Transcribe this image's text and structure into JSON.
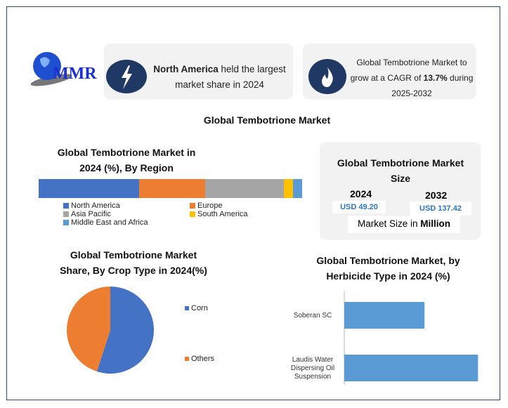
{
  "logo": {
    "text": "MMR"
  },
  "header": {
    "card1": {
      "bold": "North America",
      "text": " held the largest market share in 2024",
      "icon": "lightning-icon"
    },
    "card2": {
      "pre": "Global Tembotrione Market to grow at a CAGR of ",
      "bold": "13.7%",
      "post": " during 2025-2032",
      "icon": "flame-icon"
    }
  },
  "main_title": "Global Tembotrione Market",
  "market_size": {
    "title": "Global Tembotrione Market Size",
    "year1": "2024",
    "value1": "USD 49.20",
    "year2": "2032",
    "value2": "USD 137.42",
    "note_pre": "Market Size in ",
    "note_bold": "Million"
  },
  "chart_data": [
    {
      "type": "bar",
      "orientation": "stacked-horizontal",
      "title": "Global Tembotrione Market in 2024 (%), By Region",
      "categories": [
        "North America",
        "Europe",
        "Asia Pacific",
        "South America",
        "Middle East and Africa"
      ],
      "values": [
        38,
        25.3,
        29.7,
        3.5,
        3.5
      ],
      "colors": [
        "#4472c4",
        "#ed7d31",
        "#a5a5a5",
        "#ffc000",
        "#5b9bd5"
      ],
      "legend": "bottom"
    },
    {
      "type": "pie",
      "title": "Global Tembotrione Market Share, By Crop Type in 2024(%)",
      "categories": [
        "Corn",
        "Others"
      ],
      "values": [
        55,
        45
      ],
      "colors": [
        "#4472c4",
        "#ed7d31"
      ],
      "legend": "right"
    },
    {
      "type": "bar",
      "orientation": "horizontal",
      "title": "Global Tembotrione Market, by Herbicide Type in 2024 (%)",
      "categories": [
        "Soberan SC",
        "Laudis Water Dispersing Oil Suspension"
      ],
      "values": [
        37.5,
        62.5
      ],
      "color": "#5b9bd5",
      "xlim": [
        0,
        100
      ]
    }
  ]
}
